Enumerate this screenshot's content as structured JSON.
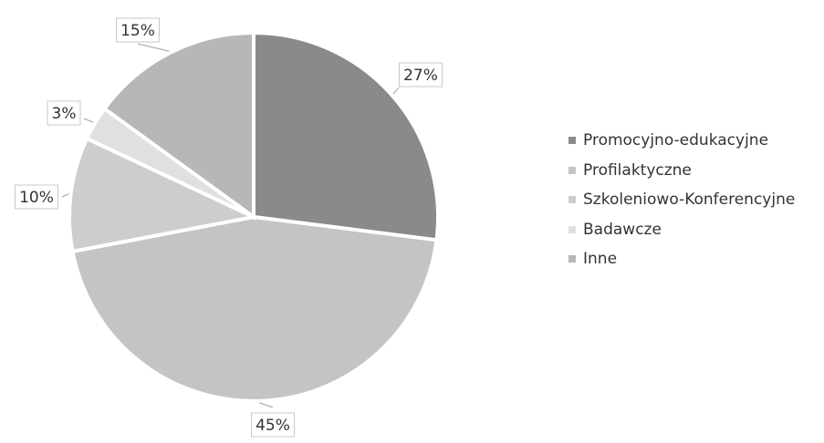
{
  "chart_data": {
    "type": "pie",
    "slices": [
      {
        "label": "Promocyjno-edukacyjne",
        "value": 27,
        "display": "27%",
        "color": "#8a8a8a"
      },
      {
        "label": "Profilaktyczne",
        "value": 45,
        "display": "45%",
        "color": "#c4c4c4"
      },
      {
        "label": "Szkoleniowo-Konferencyjne",
        "value": 10,
        "display": "10%",
        "color": "#cdcdcd"
      },
      {
        "label": "Badawcze",
        "value": 3,
        "display": "3%",
        "color": "#e0e0e0"
      },
      {
        "label": "Inne",
        "value": 15,
        "display": "15%",
        "color": "#b7b7b7"
      }
    ],
    "legend_position": "right",
    "start_angle_deg": 0,
    "direction": "clockwise"
  }
}
